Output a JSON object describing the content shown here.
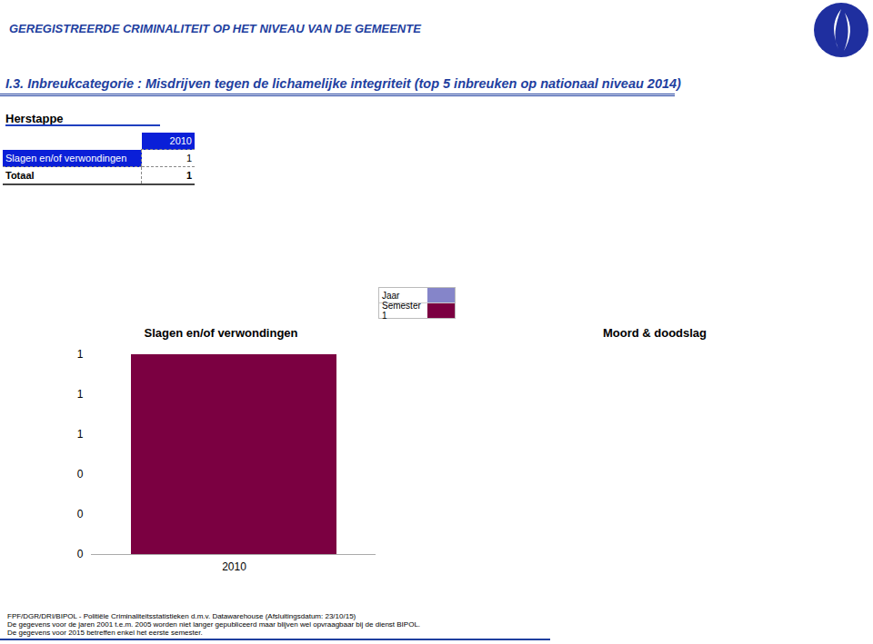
{
  "header": {
    "title": "GEREGISTREERDE CRIMINALITEIT OP HET NIVEAU VAN DE GEMEENTE",
    "subtitle": "I.3. Inbreukcategorie : Misdrijven tegen de lichamelijke integriteit (top 5 inbreuken op nationaal niveau 2014)",
    "place": "Herstappe"
  },
  "table": {
    "columns": [
      "2010"
    ],
    "rows": [
      {
        "label": "Slagen en/of verwondingen",
        "values": [
          1
        ]
      },
      {
        "label": "Totaal",
        "values": [
          1
        ]
      }
    ]
  },
  "legend": [
    {
      "label": "Jaar",
      "color": "#8585c9"
    },
    {
      "label": "Semester 1",
      "color": "#7b0041"
    }
  ],
  "chart_data": [
    {
      "type": "bar",
      "title": "Slagen en/of verwondingen",
      "categories": [
        "2010"
      ],
      "values": [
        1
      ],
      "color": "#7b0041",
      "ylim": [
        0,
        1
      ],
      "yticks": [
        0,
        {
          "value": 0.2,
          "label": "0"
        },
        {
          "value": 0.4,
          "label": "0"
        },
        {
          "value": 0.6,
          "label": "1"
        },
        {
          "value": 0.8,
          "label": "1"
        },
        1
      ],
      "grid": false
    },
    {
      "type": "bar",
      "title": "Moord & doodslag",
      "categories": [],
      "values": []
    }
  ],
  "footer": [
    "FPF/DGR/DRI/BIPOL - Politiële Criminaliteitsstatistieken d.m.v. Datawarehouse (Afsluitingsdatum: 23/10/15)",
    "De gegevens voor de jaren 2001 t.e.m. 2005 worden niet langer gepubliceerd maar blijven wel opvraagbaar bij de dienst BIPOL.",
    "De gegevens voor 2015 betreffen enkel het eerste semester."
  ]
}
